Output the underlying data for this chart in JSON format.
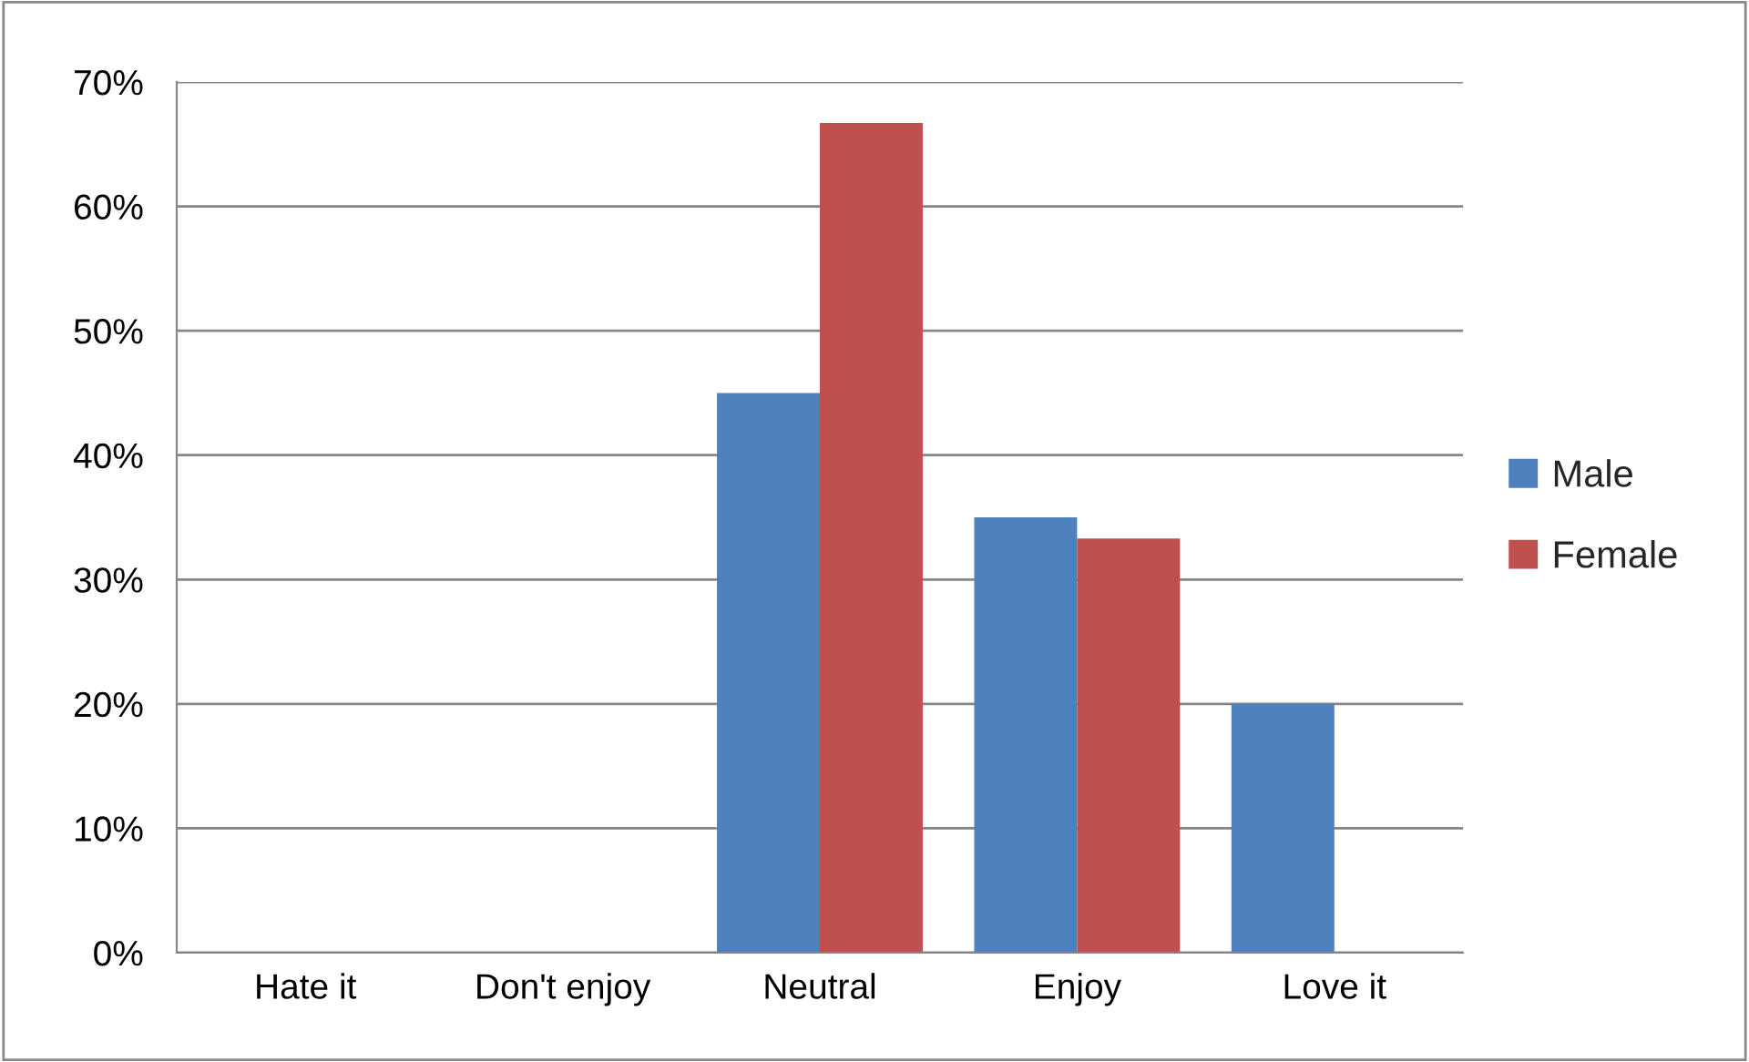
{
  "chart_data": {
    "type": "bar",
    "categories": [
      "Hate it",
      "Don't enjoy",
      "Neutral",
      "Enjoy",
      "Love it"
    ],
    "series": [
      {
        "name": "Male",
        "color": "#4f81bd",
        "values": [
          0,
          0,
          45,
          35,
          20
        ]
      },
      {
        "name": "Female",
        "color": "#c0504d",
        "values": [
          0,
          0,
          66.7,
          33.3,
          0
        ]
      }
    ],
    "ylim": [
      0,
      70
    ],
    "yticks": [
      {
        "value": 0,
        "label": "0%"
      },
      {
        "value": 10,
        "label": "10%"
      },
      {
        "value": 20,
        "label": "20%"
      },
      {
        "value": 30,
        "label": "30%"
      },
      {
        "value": 40,
        "label": "40%"
      },
      {
        "value": 50,
        "label": "50%"
      },
      {
        "value": 60,
        "label": "60%"
      },
      {
        "value": 70,
        "label": "70%"
      }
    ],
    "grid": "y",
    "legend": "right"
  }
}
